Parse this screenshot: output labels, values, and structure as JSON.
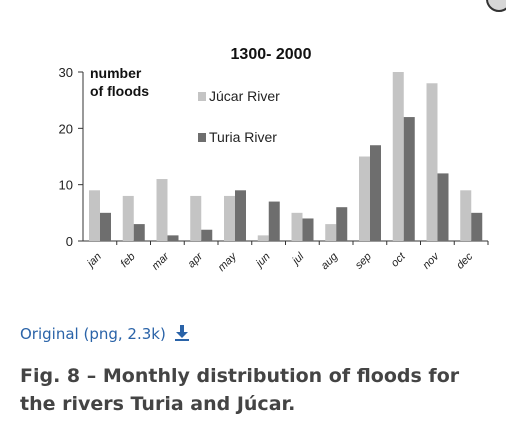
{
  "link": {
    "label": "Original (png, 2.3k)"
  },
  "caption": "Fig. 8 – Monthly distribution of floods for the rivers Turia and Júcar.",
  "colors": {
    "jucar": "#c4c4c4",
    "turia": "#6e6e6e",
    "link": "#2a63a8"
  },
  "icons": {
    "download": "download-arrow-icon"
  },
  "chart_data": {
    "type": "bar",
    "title": "1300- 2000",
    "ylabel_lines": [
      "number",
      "of floods"
    ],
    "categories": [
      "jan",
      "feb",
      "mar",
      "apr",
      "may",
      "jun",
      "jul",
      "aug",
      "sep",
      "oct",
      "nov",
      "dec"
    ],
    "ylim": [
      0,
      30
    ],
    "yticks": [
      0,
      10,
      20,
      30
    ],
    "legend_position": "top-center",
    "grid": false,
    "series": [
      {
        "name": "Júcar River",
        "color": "#c4c4c4",
        "values": [
          9,
          8,
          11,
          8,
          8,
          1,
          5,
          3,
          15,
          30,
          28,
          9
        ]
      },
      {
        "name": "Turia River",
        "color": "#6e6e6e",
        "values": [
          5,
          3,
          1,
          2,
          9,
          7,
          4,
          6,
          17,
          22,
          12,
          5
        ]
      }
    ]
  }
}
